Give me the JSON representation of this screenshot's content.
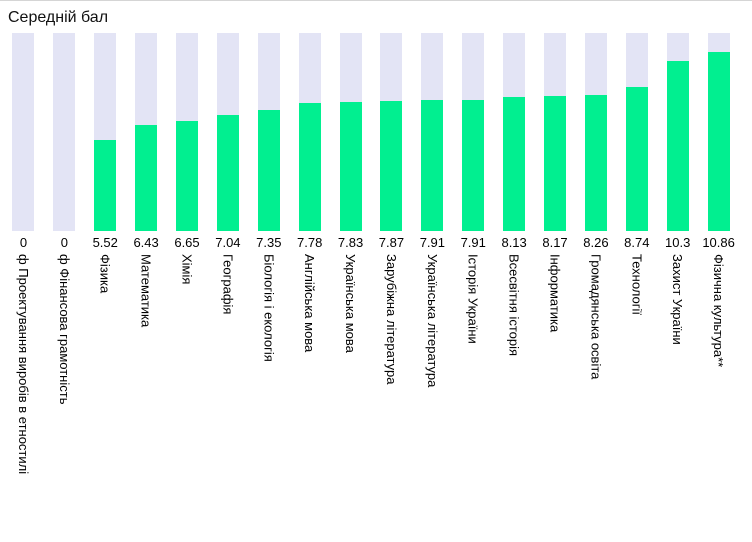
{
  "page": {
    "background_color": "#ffffff",
    "top_border_color": "#d5d5d5",
    "text_color": "#000000"
  },
  "chart_data": {
    "type": "bar",
    "title": "Середній бал",
    "xlabel": "",
    "ylabel": "",
    "ylim": [
      0,
      12
    ],
    "grid": false,
    "legend": "none",
    "bar_color": "#01ef90",
    "track_color": "#e3e4f5",
    "category_label_rotation_deg": 90,
    "categories": [
      "ф Проектування виробів в етностилі",
      "ф Фінансова грамотність",
      "Фізика",
      "Математика",
      "Хімія",
      "Географія",
      "Біологія і екологія",
      "Англійська мова",
      "Українська мова",
      "Зарубіжна література",
      "Українська література",
      "Історія України",
      "Всесвітня історія",
      "Інформатика",
      "Громадянська освіта",
      "Технології",
      "Захист України",
      "Фізична культура**"
    ],
    "values": [
      0,
      0,
      5.52,
      6.43,
      6.65,
      7.04,
      7.35,
      7.78,
      7.83,
      7.87,
      7.91,
      7.91,
      8.13,
      8.17,
      8.26,
      8.74,
      10.3,
      10.86
    ],
    "value_labels": [
      "0",
      "0",
      "5.52",
      "6.43",
      "6.65",
      "7.04",
      "7.35",
      "7.78",
      "7.83",
      "7.87",
      "7.91",
      "7.91",
      "8.13",
      "8.17",
      "8.26",
      "8.74",
      "10.3",
      "10.86"
    ]
  }
}
